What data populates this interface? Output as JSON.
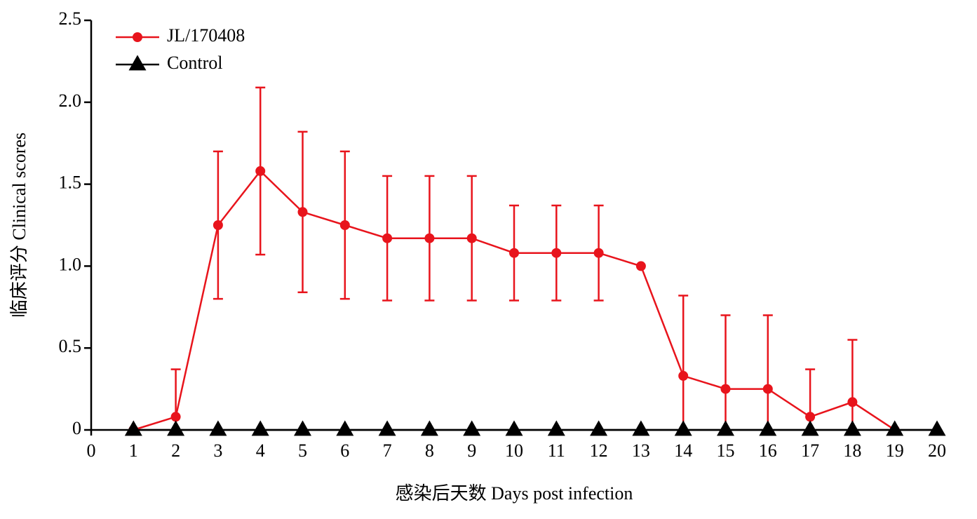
{
  "chart_data": {
    "type": "line",
    "xlabel": "感染后天数 Days post infection",
    "ylabel": "临床评分 Clinical scores",
    "xlim": [
      0,
      20
    ],
    "xticks": [
      0,
      1,
      2,
      3,
      4,
      5,
      6,
      7,
      8,
      9,
      10,
      11,
      12,
      13,
      14,
      15,
      16,
      17,
      18,
      19,
      20
    ],
    "ylim": [
      0,
      2.5
    ],
    "yticks": [
      0,
      0.5,
      {
        "value": 1,
        "label": "1.0"
      },
      1.5,
      {
        "value": 2,
        "label": "2.0"
      },
      2.5
    ],
    "legend": "upper left",
    "series": [
      {
        "name": "JL/170408",
        "color": "#e8141c",
        "marker": "circle",
        "x": [
          1,
          2,
          3,
          4,
          5,
          6,
          7,
          8,
          9,
          10,
          11,
          12,
          13,
          14,
          15,
          16,
          17,
          18,
          19
        ],
        "values": [
          0,
          0.08,
          1.25,
          1.58,
          1.33,
          1.25,
          1.17,
          1.17,
          1.17,
          1.08,
          1.08,
          1.08,
          1.0,
          0.33,
          0.25,
          0.25,
          0.08,
          0.17,
          0
        ],
        "errors": [
          0,
          0.29,
          0.45,
          0.51,
          0.49,
          0.45,
          0.38,
          0.38,
          0.38,
          0.29,
          0.29,
          0.29,
          0,
          0.49,
          0.45,
          0.45,
          0.29,
          0.38,
          0
        ]
      },
      {
        "name": "Control",
        "color": "#000000",
        "marker": "triangle",
        "x": [
          1,
          2,
          3,
          4,
          5,
          6,
          7,
          8,
          9,
          10,
          11,
          12,
          13,
          14,
          15,
          16,
          17,
          18,
          19,
          20
        ],
        "values": [
          0,
          0,
          0,
          0,
          0,
          0,
          0,
          0,
          0,
          0,
          0,
          0,
          0,
          0,
          0,
          0,
          0,
          0,
          0,
          0
        ]
      }
    ]
  }
}
